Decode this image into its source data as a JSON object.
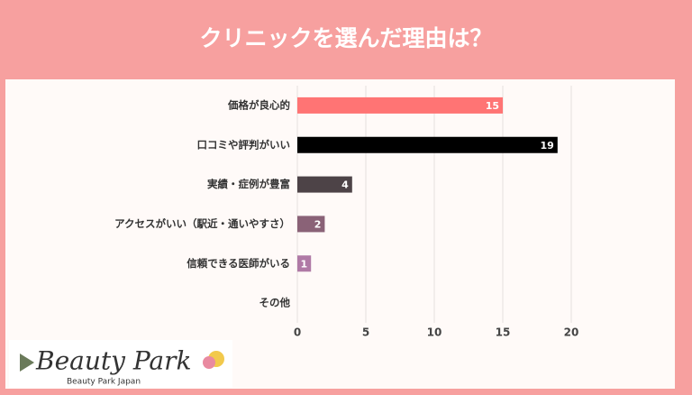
{
  "chart_data": {
    "type": "hbar",
    "title": "クリニックを選んだ理由は？",
    "categories": [
      "価格が良心的",
      "口コミや評判がいい",
      "実績・症例が豊富",
      "アクセスがいい（駅近・通いやすさ）",
      "信頼できる医師がいる",
      "その他"
    ],
    "values": [
      15,
      19,
      4,
      2,
      1,
      0
    ],
    "colors": [
      "#ff7474",
      "#000000",
      "#4d4347",
      "#8a6277",
      "#b07aa6",
      "#b07aa6"
    ],
    "xlim": [
      0,
      20
    ],
    "xticks": [
      0,
      5,
      10,
      15,
      20
    ],
    "grid": true
  },
  "logo": {
    "name": "Beauty Park",
    "subtitle": "Beauty Park Japan"
  }
}
